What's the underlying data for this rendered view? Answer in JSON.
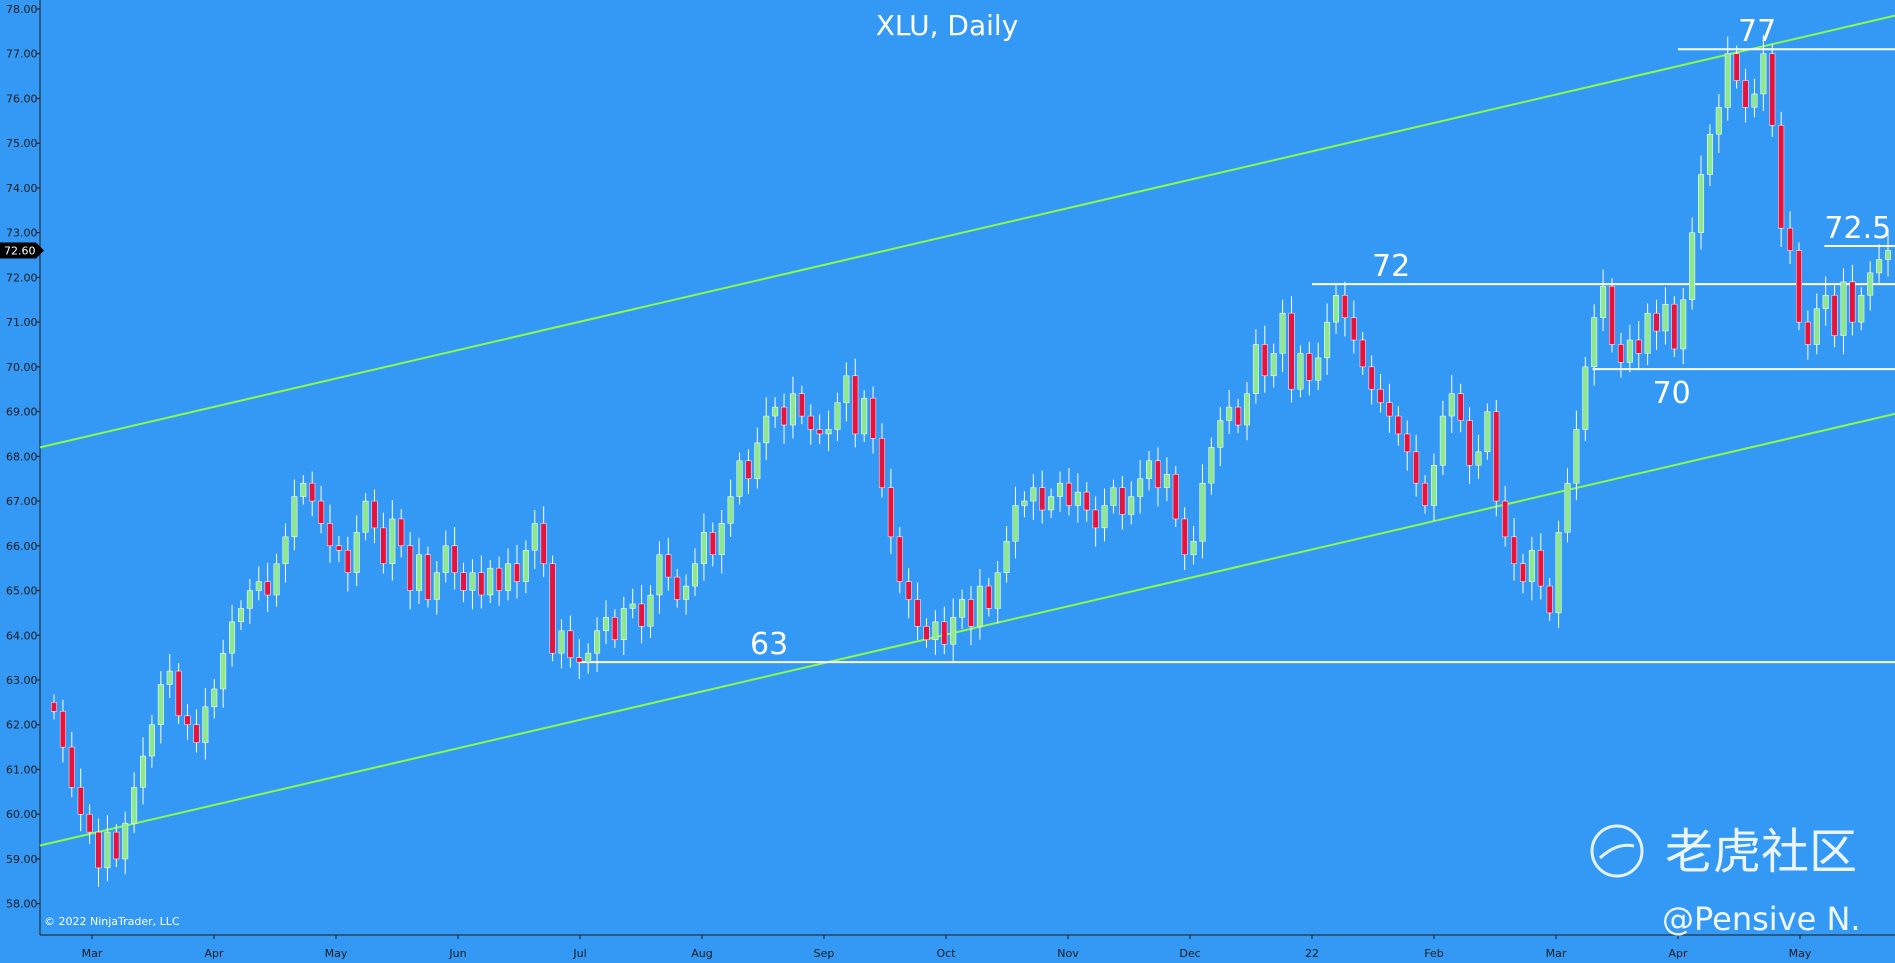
{
  "chart_data": {
    "type": "candlestick",
    "title": "XLU, Daily",
    "yticks": [
      "58.00",
      "59.00",
      "60.00",
      "61.00",
      "62.00",
      "63.00",
      "64.00",
      "65.00",
      "66.00",
      "67.00",
      "68.00",
      "69.00",
      "70.00",
      "71.00",
      "72.00",
      "73.00",
      "74.00",
      "75.00",
      "76.00",
      "77.00",
      "78.00"
    ],
    "ylim": [
      57.3,
      78.2
    ],
    "xlabels": [
      "Mar",
      "Apr",
      "May",
      "Jun",
      "Jul",
      "Aug",
      "Sep",
      "Oct",
      "Nov",
      "Dec",
      "22",
      "Feb",
      "Mar",
      "Apr",
      "May"
    ],
    "current_price": "72.60",
    "levels": [
      {
        "label": "63",
        "value": 63.4,
        "from_month": 4.0
      },
      {
        "label": "72",
        "value": 71.85,
        "from_month": 10.0
      },
      {
        "label": "70",
        "value": 69.95,
        "from_month": 12.3
      },
      {
        "label": "72.5",
        "value": 72.7,
        "from_month": 14.2
      },
      {
        "label": "77",
        "value": 77.1,
        "from_month": 13.0
      }
    ],
    "channel": {
      "upper": {
        "start": 68.2,
        "end": 77.85
      },
      "lower": {
        "start": 59.3,
        "end": 68.95
      }
    },
    "closes": [
      62.3,
      61.5,
      60.6,
      60.0,
      59.6,
      58.8,
      59.6,
      59.0,
      59.8,
      60.6,
      61.3,
      62.0,
      62.9,
      63.2,
      62.2,
      62.0,
      61.6,
      62.4,
      62.8,
      63.6,
      64.3,
      64.6,
      65.0,
      65.2,
      64.9,
      65.6,
      66.2,
      67.1,
      67.4,
      67.0,
      66.5,
      66.0,
      65.9,
      65.4,
      66.3,
      67.0,
      66.4,
      65.6,
      66.6,
      66.0,
      65.0,
      65.8,
      64.8,
      65.4,
      66.0,
      65.4,
      65.0,
      65.4,
      64.9,
      65.5,
      65.0,
      65.6,
      65.2,
      65.9,
      66.5,
      65.6,
      63.6,
      64.1,
      63.5,
      63.4,
      63.6,
      64.1,
      64.4,
      63.9,
      64.6,
      64.7,
      64.2,
      64.9,
      65.8,
      65.3,
      64.8,
      65.1,
      65.6,
      66.3,
      65.8,
      66.5,
      67.1,
      67.9,
      67.5,
      68.3,
      68.9,
      69.1,
      68.7,
      69.4,
      68.9,
      68.6,
      68.5,
      68.6,
      69.2,
      69.8,
      68.5,
      69.3,
      68.4,
      67.3,
      66.2,
      65.2,
      64.8,
      64.2,
      63.9,
      64.3,
      63.8,
      64.4,
      64.8,
      64.2,
      65.1,
      64.6,
      65.4,
      66.1,
      66.9,
      67.0,
      67.3,
      66.8,
      67.1,
      67.4,
      66.9,
      67.2,
      66.8,
      66.4,
      66.9,
      67.3,
      66.7,
      67.1,
      67.5,
      67.9,
      67.3,
      67.6,
      66.6,
      65.8,
      66.1,
      67.4,
      68.2,
      68.8,
      69.1,
      68.7,
      69.4,
      70.5,
      69.8,
      70.3,
      71.2,
      69.5,
      70.3,
      69.7,
      70.2,
      71.0,
      71.6,
      71.1,
      70.6,
      70.0,
      69.5,
      69.2,
      68.9,
      68.5,
      68.1,
      67.4,
      66.9,
      67.8,
      68.9,
      69.4,
      68.8,
      67.8,
      68.1,
      69.0,
      67.0,
      66.2,
      65.6,
      65.2,
      65.9,
      65.1,
      64.5,
      66.3,
      67.4,
      68.6,
      70.0,
      71.1,
      71.8,
      70.5,
      70.1,
      70.6,
      70.3,
      71.2,
      70.8,
      71.4,
      70.4,
      71.5,
      73.0,
      74.3,
      75.2,
      75.8,
      77.0,
      76.4,
      75.8,
      76.1,
      77.0,
      75.4,
      73.1,
      72.6,
      71.0,
      70.5,
      71.3,
      71.6,
      70.7,
      71.9,
      71.0,
      71.6,
      72.1,
      72.4,
      72.6
    ]
  },
  "copyright": "© 2022 NinjaTrader, LLC",
  "watermark": {
    "brand": "老虎社区",
    "handle": "@Pensive N."
  },
  "colors": {
    "background": "#3399f5",
    "up": "#8fe88f",
    "down": "#e8123b",
    "channel": "#8dfa4a",
    "level": "#ffffff",
    "axis": "#1a1a1a"
  }
}
